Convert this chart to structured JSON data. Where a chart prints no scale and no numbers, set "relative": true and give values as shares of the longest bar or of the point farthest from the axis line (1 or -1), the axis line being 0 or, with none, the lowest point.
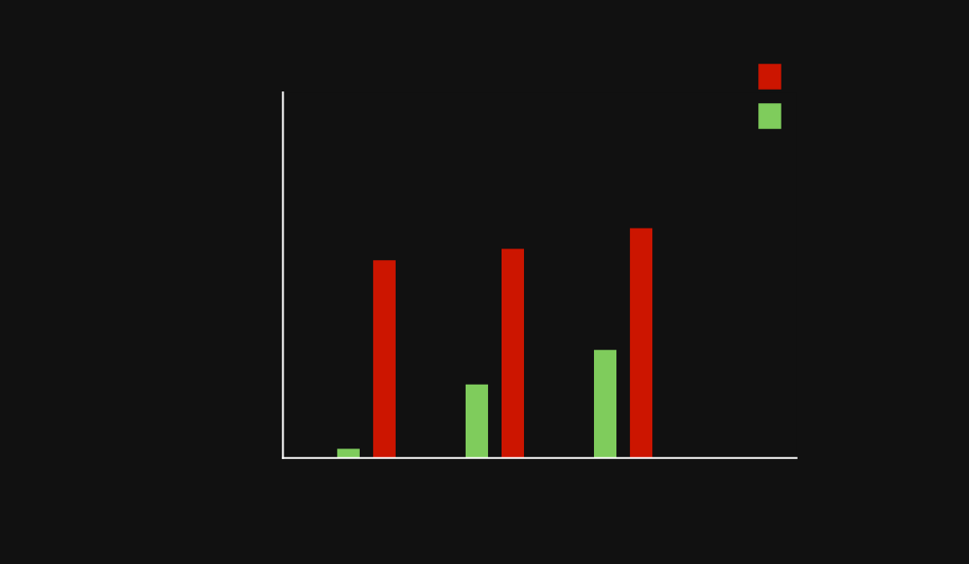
{
  "chart_data": {
    "type": "bar",
    "relative": true,
    "categories": [
      null,
      null,
      null
    ],
    "series": [
      {
        "color": "#7fcc5c",
        "values": [
          0.04,
          0.32,
          0.47
        ]
      },
      {
        "color": "#cc1500",
        "values": [
          0.86,
          0.91,
          1.0
        ]
      }
    ],
    "grid": false
  }
}
